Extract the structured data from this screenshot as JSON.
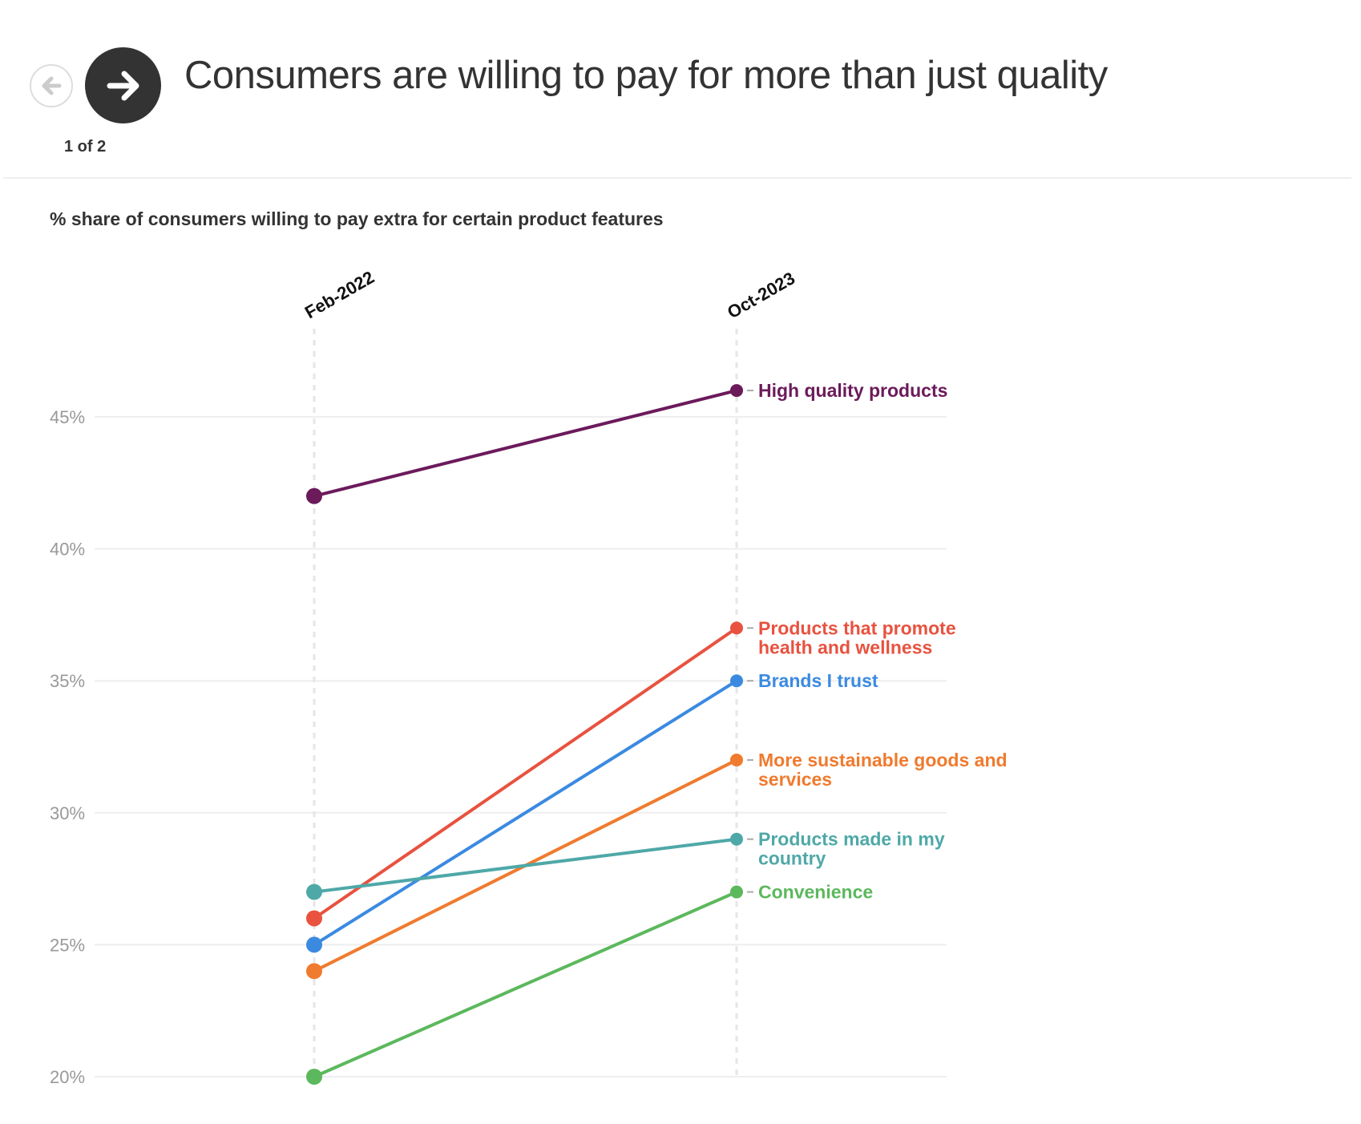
{
  "header": {
    "title": "Consumers are willing to pay for more than just quality",
    "pager": "1 of 2",
    "prev_icon": "arrow-left-icon",
    "next_icon": "arrow-right-icon"
  },
  "chart_data": {
    "type": "line",
    "subtitle": "% share of consumers willing to pay extra for certain product features",
    "categories": [
      "Feb-2022",
      "Oct-2023"
    ],
    "ylim": [
      20,
      47
    ],
    "yticks": [
      20,
      25,
      30,
      35,
      40,
      45
    ],
    "ytick_labels": [
      "20%",
      "25%",
      "30%",
      "35%",
      "40%",
      "45%"
    ],
    "grid": true,
    "series": [
      {
        "name": "High quality products",
        "label_lines": [
          "High quality products"
        ],
        "values": [
          42,
          46
        ],
        "color": "#6b1a5a"
      },
      {
        "name": "Products that promote health and wellness",
        "label_lines": [
          "Products that promote",
          "health and wellness"
        ],
        "values": [
          26,
          37
        ],
        "color": "#e8523f"
      },
      {
        "name": "Brands I trust",
        "label_lines": [
          "Brands I trust"
        ],
        "values": [
          25,
          35
        ],
        "color": "#3b8ae0"
      },
      {
        "name": "More sustainable goods and services",
        "label_lines": [
          "More sustainable goods and",
          "services"
        ],
        "values": [
          24,
          32
        ],
        "color": "#f07a2d"
      },
      {
        "name": "Products made in my country",
        "label_lines": [
          "Products made in my",
          "country"
        ],
        "values": [
          27,
          29
        ],
        "color": "#4fa8a8"
      },
      {
        "name": "Convenience",
        "label_lines": [
          "Convenience"
        ],
        "values": [
          20,
          27
        ],
        "color": "#5cb85c"
      }
    ]
  }
}
